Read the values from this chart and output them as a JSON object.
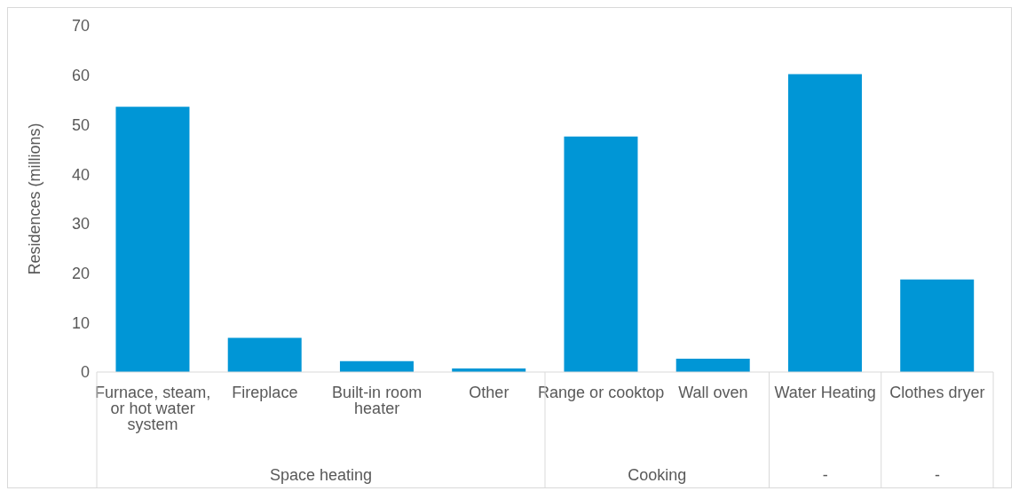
{
  "chart_data": {
    "type": "bar",
    "ylabel": "Residences (millions)",
    "categories": [
      "Furnace, steam, or hot water system",
      "Fireplace",
      "Built-in room heater",
      "Other",
      "Range or cooktop",
      "Wall oven",
      "Water Heating",
      "Clothes dryer"
    ],
    "values": [
      53.6,
      6.9,
      2.2,
      0.7,
      47.6,
      2.7,
      60.2,
      18.7
    ],
    "color": "#0096d6",
    "ylim": [
      0,
      70
    ],
    "yticks": [
      0,
      10,
      20,
      30,
      40,
      50,
      60,
      70
    ],
    "grid": false,
    "annotations": [
      "Space heating",
      "Cooking",
      "-",
      "-"
    ]
  }
}
